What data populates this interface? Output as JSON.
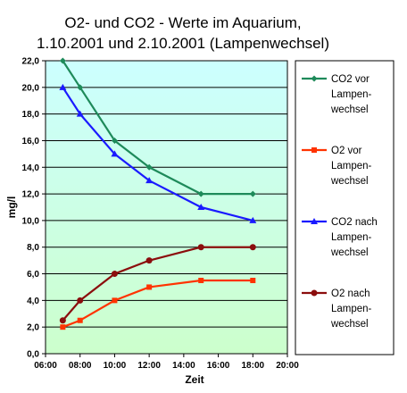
{
  "chart_data": {
    "type": "line",
    "title_lines": [
      "O2- und CO2 - Werte im Aquarium,",
      "1.10.2001 und 2.10.2001 (Lampenwechsel)"
    ],
    "xlabel": "Zeit",
    "ylabel": "mg/l",
    "xlim": [
      6,
      20
    ],
    "ylim": [
      0,
      22
    ],
    "x_ticks": [
      6,
      8,
      10,
      12,
      14,
      16,
      18,
      20
    ],
    "x_tick_labels": [
      "06:00",
      "08:00",
      "10:00",
      "12:00",
      "14:00",
      "16:00",
      "18:00",
      "20:00"
    ],
    "y_ticks": [
      0,
      2,
      4,
      6,
      8,
      10,
      12,
      14,
      16,
      18,
      20,
      22
    ],
    "y_tick_labels": [
      "0,0",
      "2,0",
      "4,0",
      "6,0",
      "8,0",
      "10,0",
      "12,0",
      "14,0",
      "16,0",
      "18,0",
      "20,0",
      "22,0"
    ],
    "grid": true,
    "legend_position": "right",
    "series": [
      {
        "name_lines": [
          "CO2 vor",
          "Lampen-",
          "wechsel"
        ],
        "color": "#1e8a5a",
        "marker": "diamond",
        "x": [
          7,
          8,
          10,
          12,
          15,
          18
        ],
        "values": [
          22,
          20,
          16,
          14,
          12,
          12
        ]
      },
      {
        "name_lines": [
          "O2 vor",
          "Lampen-",
          "wechsel"
        ],
        "color": "#ff3300",
        "marker": "square",
        "x": [
          7,
          8,
          10,
          12,
          15,
          18
        ],
        "values": [
          2,
          2.5,
          4,
          5,
          5.5,
          5.5
        ]
      },
      {
        "name_lines": [
          "CO2 nach",
          "Lampen-",
          "wechsel"
        ],
        "color": "#1a1aff",
        "marker": "triangle",
        "x": [
          7,
          8,
          10,
          12,
          15,
          18
        ],
        "values": [
          20,
          18,
          15,
          13,
          11,
          10
        ]
      },
      {
        "name_lines": [
          "O2 nach",
          "Lampen-",
          "wechsel"
        ],
        "color": "#8b0d0d",
        "marker": "circle",
        "x": [
          7,
          8,
          10,
          12,
          15,
          18
        ],
        "values": [
          2.5,
          4,
          6,
          7,
          8,
          8
        ]
      }
    ]
  }
}
